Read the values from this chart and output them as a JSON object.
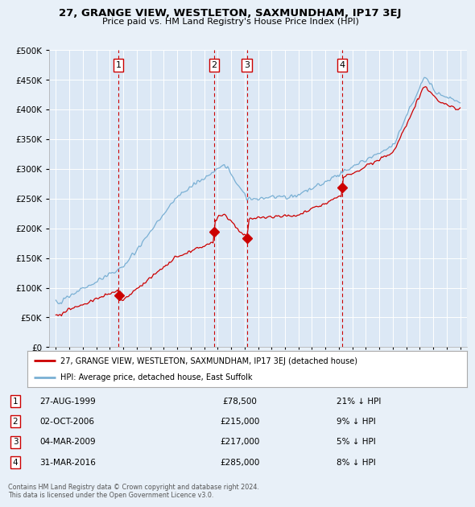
{
  "title": "27, GRANGE VIEW, WESTLETON, SAXMUNDHAM, IP17 3EJ",
  "subtitle": "Price paid vs. HM Land Registry's House Price Index (HPI)",
  "background_color": "#e8f0f8",
  "plot_bg_color": "#dce8f5",
  "transactions": [
    {
      "num": 1,
      "date": "27-AUG-1999",
      "year": 1999.65,
      "price": 78500,
      "pct": "21%",
      "dir": "↓"
    },
    {
      "num": 2,
      "date": "02-OCT-2006",
      "year": 2006.75,
      "price": 215000,
      "pct": "9%",
      "dir": "↓"
    },
    {
      "num": 3,
      "date": "04-MAR-2009",
      "year": 2009.17,
      "price": 217000,
      "pct": "5%",
      "dir": "↓"
    },
    {
      "num": 4,
      "date": "31-MAR-2016",
      "year": 2016.25,
      "price": 285000,
      "pct": "8%",
      "dir": "↓"
    }
  ],
  "legend_label_red": "27, GRANGE VIEW, WESTLETON, SAXMUNDHAM, IP17 3EJ (detached house)",
  "legend_label_blue": "HPI: Average price, detached house, East Suffolk",
  "footer": "Contains HM Land Registry data © Crown copyright and database right 2024.\nThis data is licensed under the Open Government Licence v3.0.",
  "red_color": "#cc0000",
  "blue_color": "#7ab0d4",
  "dashed_color": "#cc0000",
  "ylim": [
    0,
    500000
  ],
  "xlim_start": 1994.5,
  "xlim_end": 2025.5
}
